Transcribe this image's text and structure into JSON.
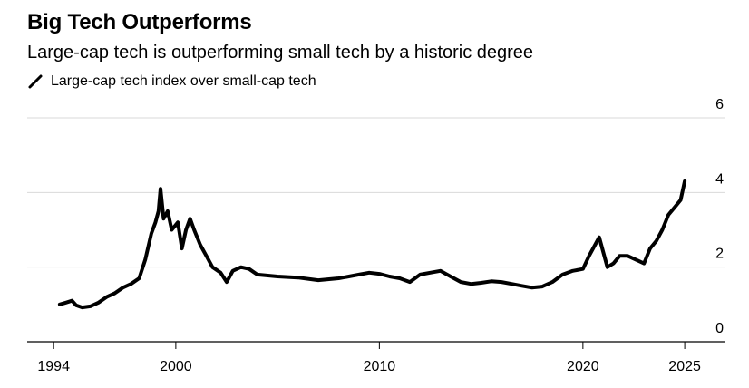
{
  "chart_data": {
    "type": "line",
    "title": "Big Tech Outperforms",
    "subtitle": "Large-cap tech is outperforming small tech by a historic degree",
    "series": [
      {
        "name": "Large-cap tech index over small-cap tech",
        "color": "#000000",
        "points": [
          [
            1994.3,
            1.0
          ],
          [
            1994.6,
            1.05
          ],
          [
            1994.9,
            1.1
          ],
          [
            1995.1,
            0.98
          ],
          [
            1995.4,
            0.92
          ],
          [
            1995.8,
            0.95
          ],
          [
            1996.2,
            1.05
          ],
          [
            1996.6,
            1.2
          ],
          [
            1997.0,
            1.3
          ],
          [
            1997.4,
            1.45
          ],
          [
            1997.8,
            1.55
          ],
          [
            1998.2,
            1.7
          ],
          [
            1998.5,
            2.2
          ],
          [
            1998.8,
            2.9
          ],
          [
            1999.0,
            3.2
          ],
          [
            1999.15,
            3.5
          ],
          [
            1999.25,
            4.1
          ],
          [
            1999.4,
            3.3
          ],
          [
            1999.6,
            3.5
          ],
          [
            1999.8,
            3.0
          ],
          [
            2000.1,
            3.2
          ],
          [
            2000.3,
            2.5
          ],
          [
            2000.5,
            3.0
          ],
          [
            2000.7,
            3.3
          ],
          [
            2000.9,
            3.0
          ],
          [
            2001.2,
            2.6
          ],
          [
            2001.5,
            2.3
          ],
          [
            2001.8,
            2.0
          ],
          [
            2002.2,
            1.85
          ],
          [
            2002.5,
            1.6
          ],
          [
            2002.8,
            1.9
          ],
          [
            2003.2,
            2.0
          ],
          [
            2003.6,
            1.95
          ],
          [
            2004.0,
            1.8
          ],
          [
            2005.0,
            1.75
          ],
          [
            2006.0,
            1.72
          ],
          [
            2007.0,
            1.65
          ],
          [
            2008.0,
            1.7
          ],
          [
            2008.5,
            1.75
          ],
          [
            2009.0,
            1.8
          ],
          [
            2009.5,
            1.85
          ],
          [
            2010.0,
            1.82
          ],
          [
            2010.5,
            1.75
          ],
          [
            2011.0,
            1.7
          ],
          [
            2011.5,
            1.6
          ],
          [
            2012.0,
            1.8
          ],
          [
            2012.5,
            1.85
          ],
          [
            2013.0,
            1.9
          ],
          [
            2013.5,
            1.75
          ],
          [
            2014.0,
            1.6
          ],
          [
            2014.5,
            1.55
          ],
          [
            2015.0,
            1.58
          ],
          [
            2015.5,
            1.62
          ],
          [
            2016.0,
            1.6
          ],
          [
            2016.5,
            1.55
          ],
          [
            2017.0,
            1.5
          ],
          [
            2017.5,
            1.45
          ],
          [
            2018.0,
            1.48
          ],
          [
            2018.5,
            1.6
          ],
          [
            2019.0,
            1.8
          ],
          [
            2019.5,
            1.9
          ],
          [
            2020.0,
            1.95
          ],
          [
            2020.3,
            2.3
          ],
          [
            2020.6,
            2.6
          ],
          [
            2020.8,
            2.8
          ],
          [
            2021.0,
            2.4
          ],
          [
            2021.2,
            2.0
          ],
          [
            2021.5,
            2.1
          ],
          [
            2021.8,
            2.3
          ],
          [
            2022.2,
            2.3
          ],
          [
            2022.6,
            2.2
          ],
          [
            2023.0,
            2.1
          ],
          [
            2023.3,
            2.5
          ],
          [
            2023.6,
            2.7
          ],
          [
            2023.9,
            3.0
          ],
          [
            2024.2,
            3.4
          ],
          [
            2024.5,
            3.6
          ],
          [
            2024.8,
            3.8
          ],
          [
            2025.0,
            4.3
          ]
        ]
      }
    ],
    "x_ticks": [
      1994,
      2000,
      2010,
      2020,
      2025
    ],
    "y_ticks": [
      0,
      2,
      4,
      6
    ],
    "xlim": [
      1992.7,
      2027
    ],
    "ylim": [
      0,
      6
    ],
    "xlabel": "",
    "ylabel": "",
    "grid": true,
    "y_axis_side": "right"
  }
}
